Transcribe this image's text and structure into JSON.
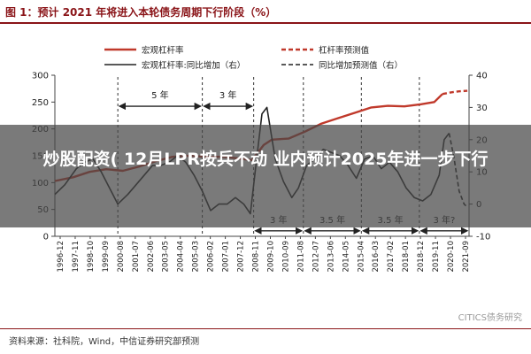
{
  "title": "图 1：预计 2021 年将进入本轮债务周期下行阶段（%）",
  "headline": "炒股配资( 12月LPR按兵不动 业内预计2025年进一步下行",
  "source": "资料来源：社科院，Wind，中信证券研究部预测",
  "watermark": "CITICS债务研究",
  "colors": {
    "leverage": "#c0392b",
    "growth": "#222222",
    "accent": "#8a1418"
  },
  "chart_data": {
    "type": "line",
    "x_tick_labels": [
      "1996-12",
      "1997-11",
      "1998-10",
      "1999-09",
      "2000-08",
      "2001-07",
      "2002-06",
      "2003-05",
      "2004-04",
      "2005-03",
      "2006-02",
      "2007-01",
      "2007-12",
      "2008-11",
      "2009-10",
      "2010-09",
      "2011-08",
      "2012-07",
      "2013-06",
      "2014-05",
      "2015-04",
      "2016-03",
      "2017-02",
      "2018-01",
      "2018-12",
      "2019-11",
      "2020-10",
      "2021-09"
    ],
    "left_axis": {
      "min": 0,
      "max": 300,
      "ticks": [
        0,
        50,
        100,
        150,
        200,
        250,
        300
      ]
    },
    "right_axis": {
      "min": -10,
      "max": 40,
      "ticks": [
        -10,
        0,
        10,
        20,
        30,
        40
      ]
    },
    "legend": [
      "宏观杠杆率",
      "杠杆率预测值",
      "宏观杠杆率:同比增加（右）",
      "同比增加预测值（右）"
    ],
    "series": [
      {
        "name": "宏观杠杆率",
        "axis": "left",
        "style": "solid",
        "x": [
          1996.9,
          1998,
          1999,
          2000,
          2001,
          2002,
          2003,
          2004,
          2005,
          2006,
          2007,
          2008,
          2008.8,
          2009.5,
          2010,
          2011,
          2012,
          2013,
          2014,
          2015,
          2016,
          2017,
          2018,
          2019,
          2019.8,
          2020.3
        ],
        "y": [
          103,
          110,
          120,
          125,
          122,
          130,
          140,
          148,
          150,
          148,
          148,
          145,
          142,
          170,
          180,
          182,
          195,
          210,
          220,
          230,
          240,
          243,
          242,
          246,
          250,
          265
        ]
      },
      {
        "name": "杠杆率预测值",
        "axis": "left",
        "style": "dashed",
        "x": [
          2020.3,
          2020.8,
          2021.3,
          2021.8
        ],
        "y": [
          265,
          268,
          270,
          271
        ]
      },
      {
        "name": "宏观杠杆率:同比增加（右）",
        "axis": "right",
        "style": "solid",
        "x": [
          1996.9,
          1997.5,
          1998.2,
          1998.7,
          1999.2,
          1999.7,
          2000.3,
          2000.7,
          2001.3,
          2001.8,
          2002.3,
          2002.8,
          2003.3,
          2003.8,
          2004.3,
          2004.8,
          2005.3,
          2005.8,
          2006.3,
          2006.8,
          2007.3,
          2007.8,
          2008.3,
          2008.7,
          2009.1,
          2009.4,
          2009.7,
          2010.2,
          2010.7,
          2011.2,
          2011.6,
          2012.1,
          2012.6,
          2013.1,
          2013.6,
          2014.1,
          2014.6,
          2015.1,
          2015.6,
          2016.1,
          2016.6,
          2017.1,
          2017.6,
          2018.1,
          2018.6,
          2019.1,
          2019.6,
          2020.1,
          2020.4,
          2020.7
        ],
        "y": [
          3,
          6,
          11,
          13,
          14,
          10,
          4,
          0,
          3,
          6,
          9,
          12,
          12,
          13,
          15,
          13,
          9,
          4,
          -2,
          0,
          0,
          2,
          0,
          -3,
          15,
          28,
          30,
          14,
          7,
          2,
          5,
          12,
          14,
          17,
          16,
          15,
          12,
          8,
          14,
          15,
          11,
          13,
          10,
          5,
          2,
          1,
          3,
          9,
          20,
          22
        ]
      },
      {
        "name": "同比增加预测值（右）",
        "axis": "right",
        "style": "dashed",
        "x": [
          2020.7,
          2021.0,
          2021.3,
          2021.6,
          2021.8
        ],
        "y": [
          22,
          14,
          4,
          0,
          -1
        ]
      }
    ],
    "cycle_annotations": [
      {
        "label": "5 年",
        "x_start": 2000.7,
        "x_end": 2005.8,
        "level": "upper"
      },
      {
        "label": "3 年",
        "x_start": 2005.8,
        "x_end": 2008.9,
        "level": "upper"
      },
      {
        "label": "3 年",
        "x_start": 2008.9,
        "x_end": 2011.9,
        "level": "lower"
      },
      {
        "label": "3.5 年",
        "x_start": 2011.9,
        "x_end": 2015.4,
        "level": "lower"
      },
      {
        "label": "3.5 年",
        "x_start": 2015.4,
        "x_end": 2018.9,
        "level": "lower"
      },
      {
        "label": "3 年?",
        "x_start": 2018.9,
        "x_end": 2021.9,
        "level": "lower"
      }
    ],
    "cycle_boundaries": [
      2000.7,
      2005.8,
      2008.9,
      2011.9,
      2015.4,
      2018.9,
      2021.9
    ],
    "grid": false
  }
}
